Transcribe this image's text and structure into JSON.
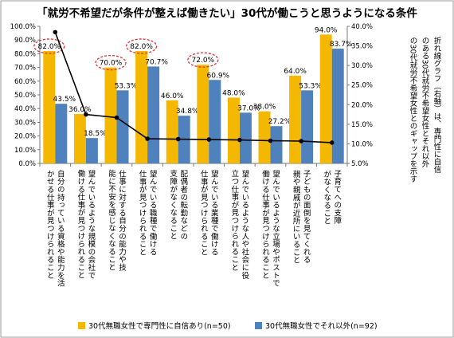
{
  "chart_data": {
    "type": "bar",
    "title": "「就労不希望だが条件が整えば働きたい」30代が働こうと思うようになる条件",
    "categories": [
      "自分の持っている資格や能力を活かせる仕事が見つけられること",
      "望んでいるような規模の会社で働ける仕事が見つけられること",
      "仕事に対する自分の能力や技能に不安を感じなくなること",
      "望んでいる職種で働ける仕事が見つけられること",
      "配偶者の転勤などの支障がなくなること",
      "望んでいる業種で働ける仕事が見つけられること",
      "望んでいるような人や社会に役立つ仕事が見つけられること",
      "望んでいるような立場やポストで働ける仕事が見つけられること",
      "子どもの面倒を見てくれる親や親戚が近所にいること",
      "子育てへの支障がなくなること"
    ],
    "series": [
      {
        "name": "30代無職女性で専門性に自信あり(n=50)",
        "color": "#F5B800",
        "values": [
          82.0,
          36.0,
          70.0,
          82.0,
          46.0,
          72.0,
          48.0,
          38.0,
          64.0,
          94.0
        ],
        "labels": [
          "82.0%",
          "36.0%",
          "70.0%",
          "82.0%",
          "46.0%",
          "72.0%",
          "48.0%",
          "38.0%",
          "64.0%",
          "94.0%"
        ]
      },
      {
        "name": "30代無職女性でそれ以外(n=92)",
        "color": "#4F81BD",
        "values": [
          43.5,
          18.5,
          53.3,
          70.7,
          34.8,
          60.9,
          37.0,
          27.2,
          53.3,
          83.7
        ],
        "labels": [
          "43.5%",
          "18.5%",
          "53.3%",
          "70.7%",
          "34.8%",
          "60.9%",
          "37.0%",
          "27.2%",
          "53.3%",
          "83.7%"
        ]
      }
    ],
    "line": {
      "axis": "right",
      "color": "#000000",
      "values": [
        38.5,
        17.5,
        16.7,
        11.3,
        11.2,
        11.1,
        11.0,
        10.8,
        10.7,
        10.3
      ]
    },
    "circled_labels": [
      "82.0%",
      "70.0%",
      "82.0%",
      "72.0%"
    ],
    "circle_color": "#E03030",
    "yaxis_left": {
      "ticks": [
        "0.0%",
        "10.0%",
        "20.0%",
        "30.0%",
        "40.0%",
        "50.0%",
        "60.0%",
        "70.0%",
        "80.0%",
        "90.0%",
        "100.0%"
      ],
      "ylim": [
        0,
        100
      ]
    },
    "yaxis_right": {
      "ticks": [
        "5.0%",
        "10.0%",
        "15.0%",
        "20.0%",
        "25.0%",
        "30.0%",
        "35.0%",
        "40.0%"
      ],
      "ylim": [
        5,
        40
      ]
    },
    "annotation": "折れ線グラフ（右軸）は、専門性に自信のある30代就労不希望女性とそれ以外の30代就労不希望女性とのギャップを示す",
    "legend_position": "bottom",
    "grid": false
  }
}
